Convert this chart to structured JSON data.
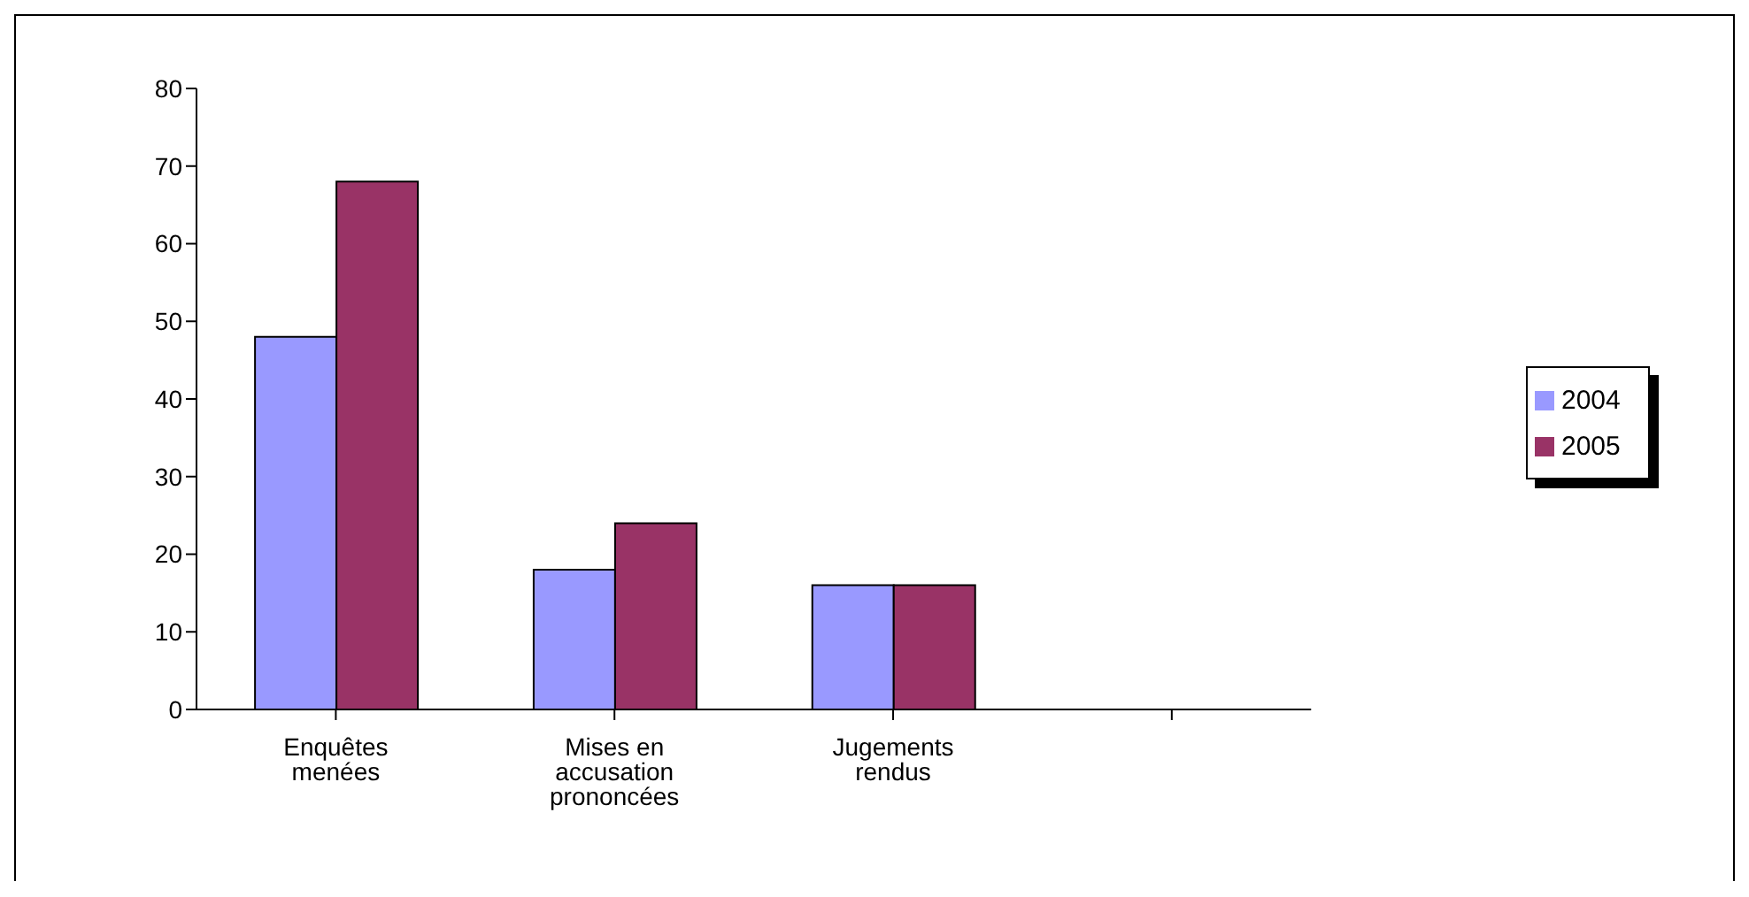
{
  "chart_data": {
    "type": "bar",
    "categories": [
      "Enquêtes menées",
      "Mises en accusation prononcées",
      "Jugements rendus",
      null
    ],
    "series": [
      {
        "name": "2004",
        "color": "#9999ff",
        "values": [
          48,
          18,
          16,
          null
        ]
      },
      {
        "name": "2005",
        "color": "#993366",
        "values": [
          68,
          24,
          16,
          null
        ]
      }
    ],
    "ylim": [
      0,
      80
    ],
    "yticks": [
      0,
      10,
      20,
      30,
      40,
      50,
      60,
      70,
      80
    ],
    "grid": false,
    "legend": "right"
  }
}
